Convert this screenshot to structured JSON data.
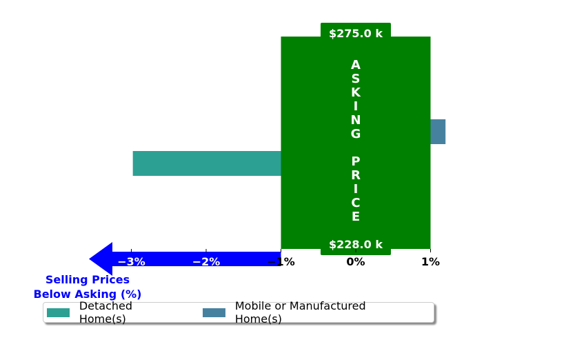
{
  "chart_data": {
    "type": "bar",
    "orientation": "horizontal",
    "series": [
      {
        "name": "Detached Home(s)",
        "value": -2.98,
        "color": "#2ca093"
      },
      {
        "name": "Mobile or Manufactured Home(s)",
        "value": 1.2,
        "color": "#4682a0"
      }
    ],
    "xlim": [
      -3.7,
      1.2
    ],
    "xticks": [
      "−3%",
      "−2%",
      "−1%",
      "0%",
      "1%"
    ],
    "xtick_values": [
      -3,
      -2,
      -1,
      0,
      1
    ],
    "asking_band": {
      "range": [
        -1,
        1
      ],
      "color": "#008000",
      "label": "ASKING PRICE",
      "top_label": "$275.0 k",
      "bottom_label": "$228.0 k"
    },
    "arrow": {
      "color": "#0000ff",
      "caption_line1": "Selling Prices",
      "caption_line2": "Below Asking (%)"
    },
    "legend_placement": "bottom",
    "grid": false
  }
}
